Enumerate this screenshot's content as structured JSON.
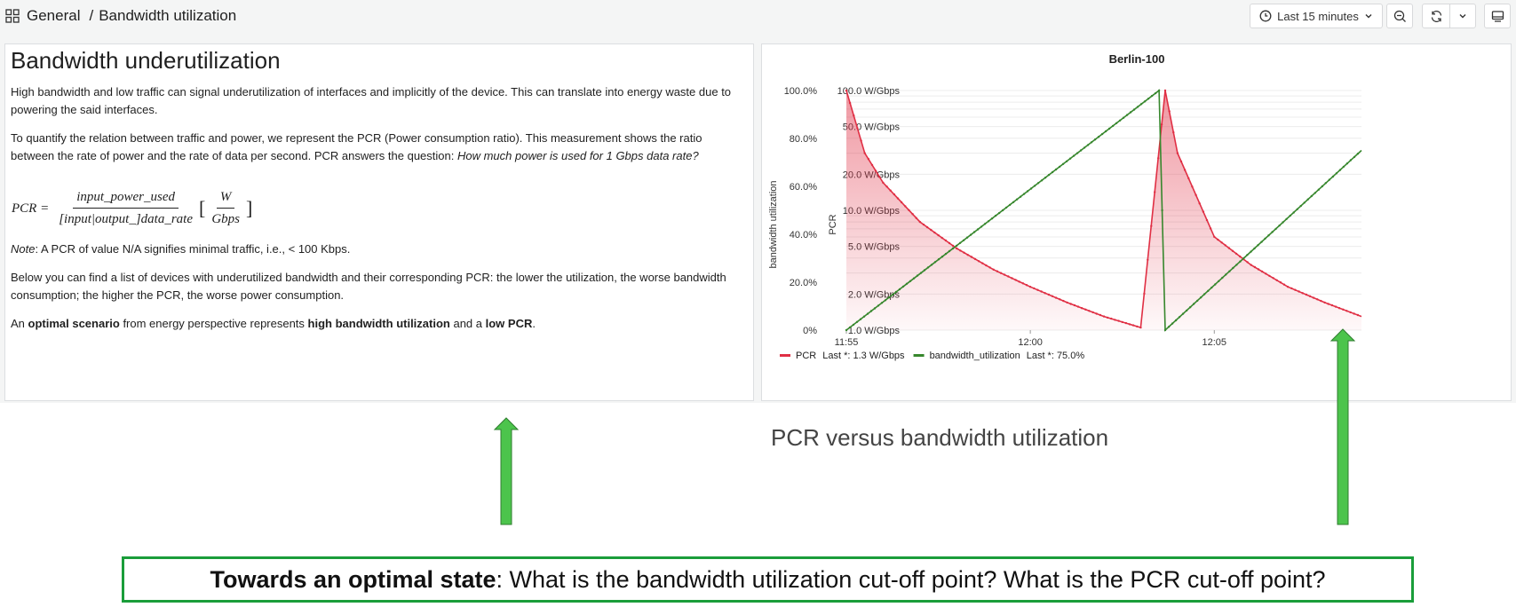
{
  "breadcrumb": {
    "folder": "General",
    "separator": "/",
    "page": "Bandwidth utilization"
  },
  "toolbar": {
    "time_range": "Last 15 minutes"
  },
  "text_panel": {
    "title": "Bandwidth underutilization",
    "p1": "High bandwidth and low traffic can signal underutilization of interfaces and implicitly of the device. This can translate into energy waste due to powering the said interfaces.",
    "p2_a": "To quantify the relation between traffic and power, we represent the PCR (Power consumption ratio). This measurement shows the ratio between the rate of power and the rate of data per second. PCR answers the question: ",
    "p2_b": "How much power is used for 1 Gbps data rate?",
    "formula": {
      "lhs": "PCR =",
      "numerator": "input_power_used",
      "denominator": "[input|output_]data_rate",
      "unit_num": "W",
      "unit_den": "Gbps"
    },
    "note_a": "Note",
    "note_b": ": A PCR of value N/A signifies minimal traffic, i.e., < 100 Kbps.",
    "p4": "Below you can find a list of devices with underutilized bandwidth and their corresponding PCR: the lower the utilization, the worse bandwidth consumption; the higher the PCR, the worse power consumption.",
    "p5_a": "An ",
    "p5_b": "optimal scenario",
    "p5_c": " from energy perspective represents ",
    "p5_d": "high bandwidth utilization",
    "p5_e": " and a ",
    "p5_f": "low PCR",
    "p5_g": "."
  },
  "chart_data": {
    "type": "line",
    "title": "Berlin-100",
    "left_axis_label": "bandwidth utilization",
    "right_axis_label": "PCR",
    "left_ticks": [
      "0%",
      "20.0%",
      "40.0%",
      "60.0%",
      "80.0%",
      "100.0%"
    ],
    "pcr_ticks": [
      "1.0 W/Gbps",
      "2.0 W/Gbps",
      "5.0 W/Gbps",
      "10.0 W/Gbps",
      "20.0 W/Gbps",
      "50.0 W/Gbps",
      "100.0 W/Gbps"
    ],
    "x_ticks": [
      "11:55",
      "12:00",
      "12:05"
    ],
    "x_range": [
      "11:55",
      "12:09"
    ],
    "ylim_utilization": [
      0,
      100
    ],
    "ylim_pcr": [
      1,
      100
    ],
    "pcr_log_scale": true,
    "series": [
      {
        "name": "PCR",
        "color": "#e02f44",
        "fill": true,
        "legend_text": "Last *: 1.3 W/Gbps",
        "points": [
          [
            "11:55",
            100
          ],
          [
            "11:55:30",
            30
          ],
          [
            "11:56",
            17
          ],
          [
            "11:57",
            8
          ],
          [
            "11:58",
            4.8
          ],
          [
            "11:59",
            3.2
          ],
          [
            "12:00",
            2.3
          ],
          [
            "12:01",
            1.7
          ],
          [
            "12:02",
            1.3
          ],
          [
            "12:03",
            1.05
          ],
          [
            "12:03:40",
            100
          ],
          [
            "12:04",
            30
          ],
          [
            "12:05",
            6
          ],
          [
            "12:06",
            3.5
          ],
          [
            "12:07",
            2.3
          ],
          [
            "12:08",
            1.7
          ],
          [
            "12:09",
            1.3
          ]
        ]
      },
      {
        "name": "bandwidth_utilization",
        "color": "#37872d",
        "fill": false,
        "legend_text": "Last *: 75.0%",
        "points": [
          [
            "11:55",
            0
          ],
          [
            "12:03:30",
            100
          ],
          [
            "12:03:40",
            0
          ],
          [
            "12:09",
            75
          ]
        ]
      }
    ]
  },
  "annotations": {
    "caption": "PCR versus bandwidth utilization",
    "callout_bold": "Towards an optimal state",
    "callout_rest": ": What is the bandwidth utilization cut-off point? What is the PCR cut-off point?",
    "arrow_color": "#4cc44c"
  }
}
